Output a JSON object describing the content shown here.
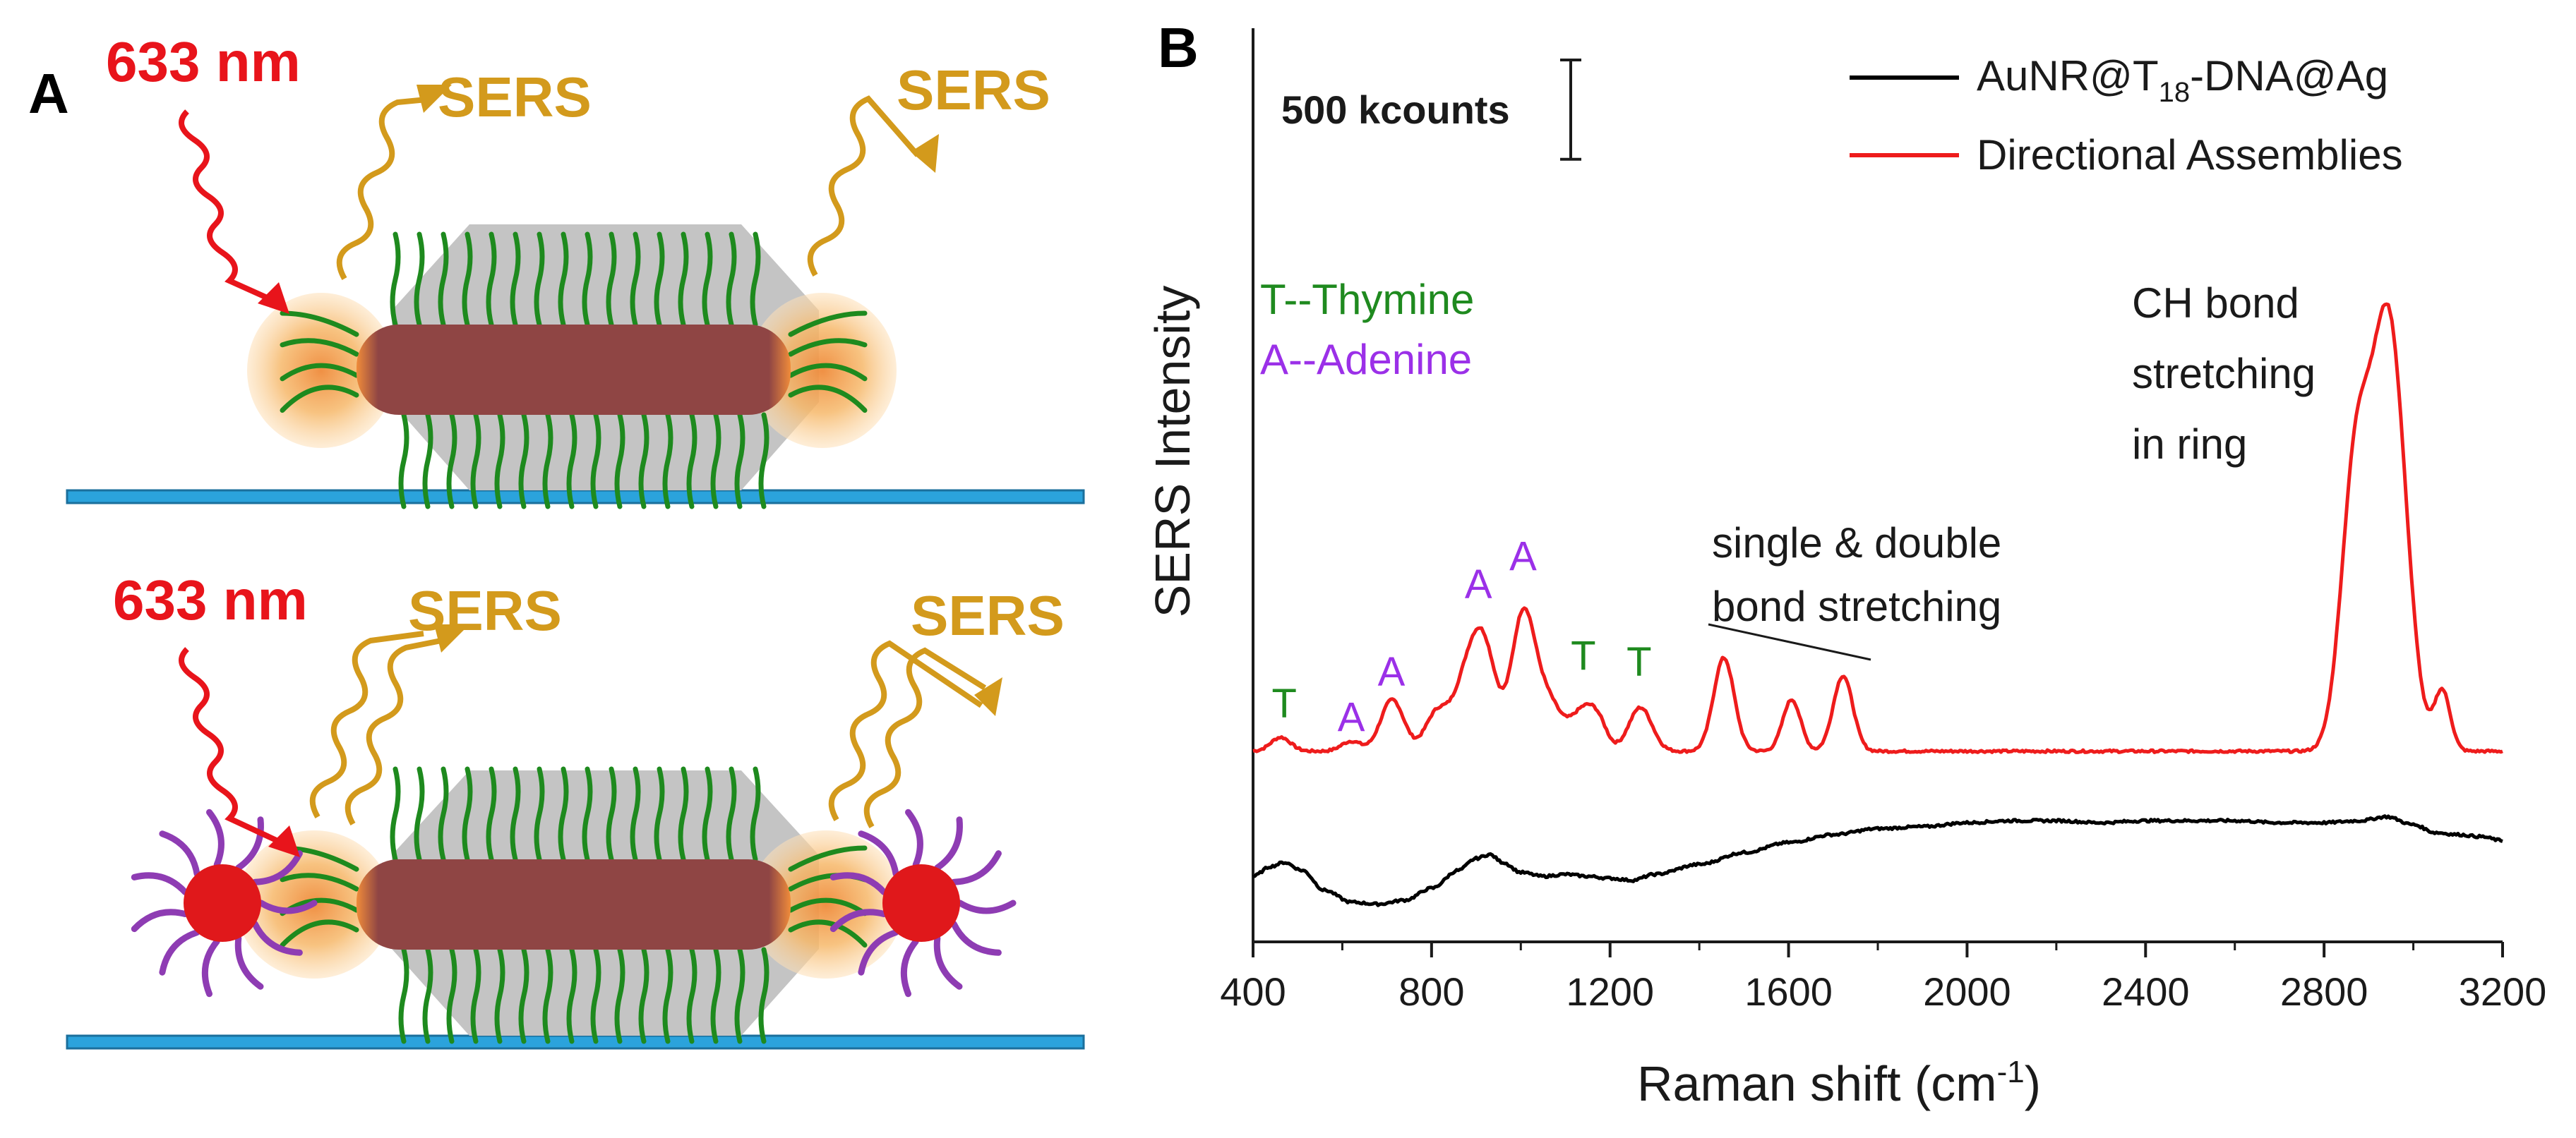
{
  "panel_a": {
    "label": "A",
    "top_scene": {
      "laser_label": "633 nm",
      "sers_left": "SERS",
      "sers_right": "SERS"
    },
    "bottom_scene": {
      "laser_label": "633 nm",
      "sers_left": "SERS",
      "sers_right": "SERS"
    },
    "colors": {
      "rod": "#8f4544",
      "shell": "#c4c4c4",
      "dna": "#1e8a1e",
      "glow": "#f6b86a",
      "substrate": "#2ba3dc",
      "laser": "#e8141b",
      "sers": "#d39a1c",
      "particle": "#e0181b",
      "ligand": "#8e3cb3"
    }
  },
  "panel_b": {
    "label": "B"
  },
  "chart_data": {
    "type": "line",
    "xlabel_main": "Raman shift (cm",
    "xlabel_sup": "-1",
    "xlabel_end": ")",
    "ylabel": "SERS  Intensity",
    "xlim": [
      400,
      3200
    ],
    "ylim": [
      0,
      4.6
    ],
    "xticks": [
      400,
      800,
      1200,
      1600,
      2000,
      2400,
      2800,
      3200
    ],
    "scale_bar": {
      "label": "500 kcounts",
      "value": 0.5
    },
    "legend": [
      {
        "main": "AuNR@T",
        "sub": "18",
        "rest": "-DNA@Ag",
        "color": "#000000"
      },
      {
        "main": "Directional Assemblies",
        "sub": "",
        "rest": "",
        "color": "#ee1c1c"
      }
    ],
    "text_annotations": {
      "thymine_key": "T--Thymine",
      "adenine_key": "A--Adenine",
      "ch_line1": "CH bond",
      "ch_line2": "stretching",
      "ch_line3": "in ring",
      "bond_line1": "single & double",
      "bond_line2": "bond stretching"
    },
    "peak_labels": [
      {
        "text": "T",
        "x": 470,
        "y": 1.13,
        "kind": "T"
      },
      {
        "text": "A",
        "x": 620,
        "y": 1.06,
        "kind": "A"
      },
      {
        "text": "A",
        "x": 710,
        "y": 1.29,
        "kind": "A"
      },
      {
        "text": "A",
        "x": 905,
        "y": 1.73,
        "kind": "A"
      },
      {
        "text": "A",
        "x": 1005,
        "y": 1.87,
        "kind": "A"
      },
      {
        "text": "T",
        "x": 1140,
        "y": 1.37,
        "kind": "T"
      },
      {
        "text": "T",
        "x": 1265,
        "y": 1.34,
        "kind": "T"
      }
    ],
    "series": [
      {
        "name": "Directional Assemblies",
        "color": "#ee1c1c",
        "baseline": 0.96,
        "peaks": [
          {
            "center": 462,
            "height": 0.07,
            "width": 22
          },
          {
            "center": 620,
            "height": 0.05,
            "width": 22
          },
          {
            "center": 712,
            "height": 0.26,
            "width": 26
          },
          {
            "center": 810,
            "height": 0.18,
            "width": 25
          },
          {
            "center": 880,
            "height": 0.35,
            "width": 32
          },
          {
            "center": 920,
            "height": 0.42,
            "width": 28
          },
          {
            "center": 1005,
            "height": 0.67,
            "width": 26
          },
          {
            "center": 1060,
            "height": 0.25,
            "width": 30
          },
          {
            "center": 1140,
            "height": 0.2,
            "width": 28
          },
          {
            "center": 1175,
            "height": 0.1,
            "width": 20
          },
          {
            "center": 1268,
            "height": 0.22,
            "width": 26
          },
          {
            "center": 1455,
            "height": 0.47,
            "width": 23
          },
          {
            "center": 1607,
            "height": 0.26,
            "width": 20
          },
          {
            "center": 1722,
            "height": 0.38,
            "width": 22
          },
          {
            "center": 2870,
            "height": 1.35,
            "width": 32
          },
          {
            "center": 2945,
            "height": 2.15,
            "width": 38
          },
          {
            "center": 3065,
            "height": 0.3,
            "width": 18
          }
        ]
      },
      {
        "name": "AuNR@T18-DNA@Ag",
        "color": "#000000",
        "broad": [
          {
            "x": 400,
            "y": 0.33
          },
          {
            "x": 440,
            "y": 0.38
          },
          {
            "x": 470,
            "y": 0.4
          },
          {
            "x": 510,
            "y": 0.36
          },
          {
            "x": 560,
            "y": 0.26
          },
          {
            "x": 620,
            "y": 0.2
          },
          {
            "x": 680,
            "y": 0.19
          },
          {
            "x": 740,
            "y": 0.21
          },
          {
            "x": 800,
            "y": 0.27
          },
          {
            "x": 860,
            "y": 0.36
          },
          {
            "x": 900,
            "y": 0.42
          },
          {
            "x": 930,
            "y": 0.44
          },
          {
            "x": 960,
            "y": 0.4
          },
          {
            "x": 1000,
            "y": 0.35
          },
          {
            "x": 1050,
            "y": 0.33
          },
          {
            "x": 1100,
            "y": 0.34
          },
          {
            "x": 1150,
            "y": 0.33
          },
          {
            "x": 1200,
            "y": 0.32
          },
          {
            "x": 1250,
            "y": 0.31
          },
          {
            "x": 1300,
            "y": 0.34
          },
          {
            "x": 1400,
            "y": 0.39
          },
          {
            "x": 1500,
            "y": 0.45
          },
          {
            "x": 1600,
            "y": 0.5
          },
          {
            "x": 1700,
            "y": 0.54
          },
          {
            "x": 1800,
            "y": 0.57
          },
          {
            "x": 1900,
            "y": 0.58
          },
          {
            "x": 2000,
            "y": 0.6
          },
          {
            "x": 2100,
            "y": 0.61
          },
          {
            "x": 2200,
            "y": 0.61
          },
          {
            "x": 2300,
            "y": 0.6
          },
          {
            "x": 2400,
            "y": 0.61
          },
          {
            "x": 2500,
            "y": 0.61
          },
          {
            "x": 2600,
            "y": 0.61
          },
          {
            "x": 2700,
            "y": 0.6
          },
          {
            "x": 2800,
            "y": 0.6
          },
          {
            "x": 2880,
            "y": 0.61
          },
          {
            "x": 2940,
            "y": 0.63
          },
          {
            "x": 3000,
            "y": 0.59
          },
          {
            "x": 3050,
            "y": 0.55
          },
          {
            "x": 3100,
            "y": 0.54
          },
          {
            "x": 3150,
            "y": 0.53
          },
          {
            "x": 3200,
            "y": 0.51
          }
        ]
      }
    ]
  }
}
